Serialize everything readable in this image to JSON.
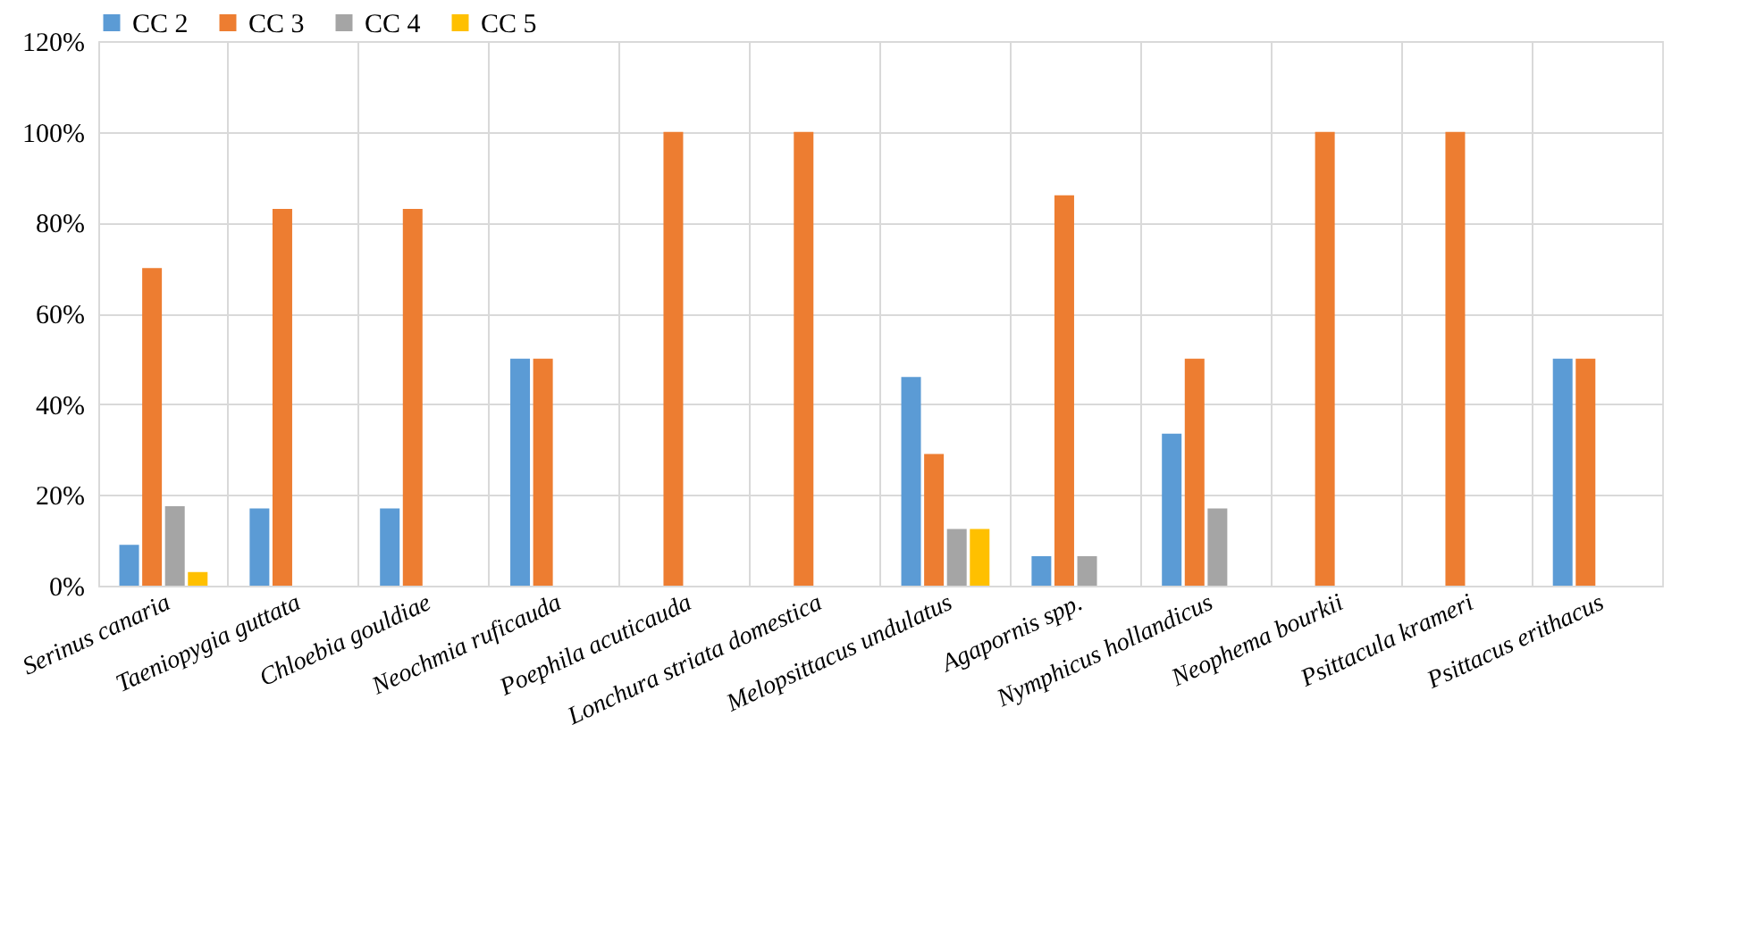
{
  "chart_data": {
    "type": "bar",
    "categories": [
      "Serinus canaria",
      "Taeniopygia guttata",
      "Chloebia gouldiae",
      "Neochmia ruficauda",
      "Poephila acuticauda",
      "Lonchura striata domestica",
      "Melopsittacus undulatus",
      "Agapornis spp.",
      "Nymphicus hollandicus",
      "Neophema bourkii",
      "Psittacula krameri",
      "Psittacus erithacus"
    ],
    "series": [
      {
        "name": "CC 2",
        "color": "#5b9bd5",
        "values": [
          9,
          17,
          17,
          50,
          null,
          null,
          46,
          6.5,
          33.5,
          null,
          null,
          50
        ]
      },
      {
        "name": "CC 3",
        "color": "#ed7d31",
        "values": [
          70,
          83,
          83,
          50,
          100,
          100,
          29,
          86,
          50,
          100,
          100,
          50
        ]
      },
      {
        "name": "CC 4",
        "color": "#a5a5a5",
        "values": [
          17.5,
          null,
          null,
          null,
          null,
          null,
          12.5,
          6.5,
          17,
          null,
          null,
          null
        ]
      },
      {
        "name": "CC 5",
        "color": "#ffc000",
        "values": [
          3,
          null,
          null,
          null,
          null,
          null,
          12.5,
          null,
          null,
          null,
          null,
          null
        ]
      }
    ],
    "ylim": [
      0,
      120
    ],
    "yticks": [
      {
        "value": 0,
        "label": "0%"
      },
      {
        "value": 20,
        "label": "20%"
      },
      {
        "value": 40,
        "label": "40%"
      },
      {
        "value": 60,
        "label": "60%"
      },
      {
        "value": 80,
        "label": "80%"
      },
      {
        "value": 100,
        "label": "100%"
      },
      {
        "value": 120,
        "label": "120%"
      }
    ],
    "grid": true,
    "legend": "top"
  }
}
